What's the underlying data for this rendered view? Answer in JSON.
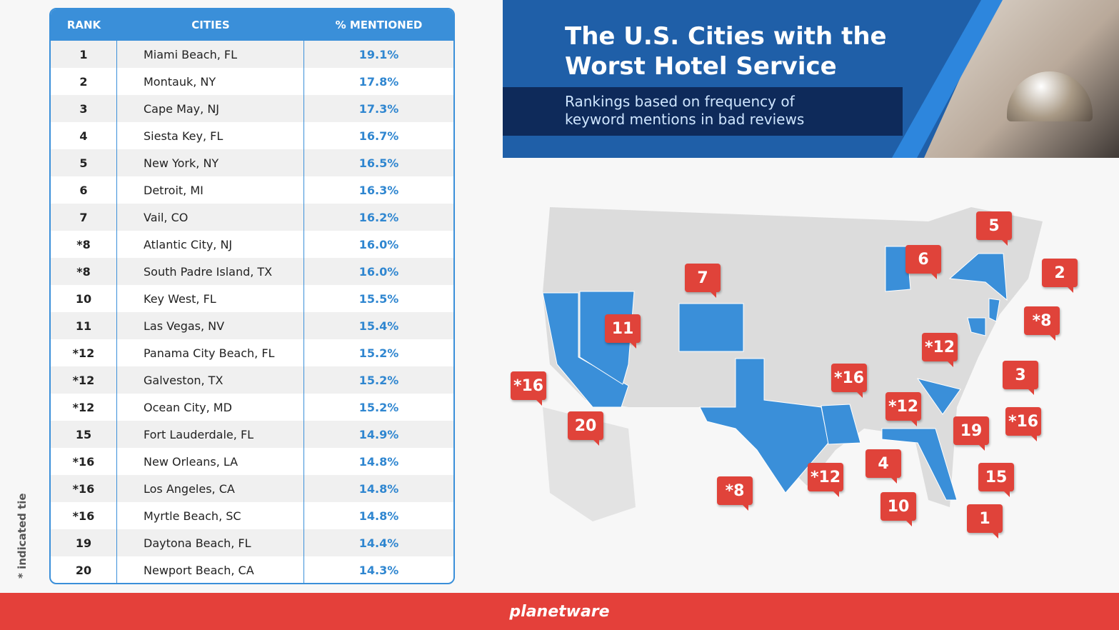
{
  "header": {
    "title_line1": "The U.S. Cities with the",
    "title_line2": "Worst Hotel Service",
    "subtitle_line1": "Rankings based on frequency of",
    "subtitle_line2": "keyword mentions in bad reviews"
  },
  "footnote": "* indicated tie",
  "footer": {
    "logo": "planetware"
  },
  "chart_data": {
    "type": "table",
    "columns": [
      "RANK",
      "CITIES",
      "% MENTIONED"
    ],
    "rows": [
      [
        "1",
        "Miami Beach, FL",
        "19.1%"
      ],
      [
        "2",
        "Montauk, NY",
        "17.8%"
      ],
      [
        "3",
        "Cape May, NJ",
        "17.3%"
      ],
      [
        "4",
        "Siesta Key, FL",
        "16.7%"
      ],
      [
        "5",
        "New York, NY",
        "16.5%"
      ],
      [
        "6",
        "Detroit, MI",
        "16.3%"
      ],
      [
        "7",
        "Vail, CO",
        "16.2%"
      ],
      [
        "*8",
        "Atlantic City, NJ",
        "16.0%"
      ],
      [
        "*8",
        "South Padre Island, TX",
        "16.0%"
      ],
      [
        "10",
        "Key West, FL",
        "15.5%"
      ],
      [
        "11",
        "Las Vegas, NV",
        "15.4%"
      ],
      [
        "*12",
        "Panama City Beach, FL",
        "15.2%"
      ],
      [
        "*12",
        "Galveston, TX",
        "15.2%"
      ],
      [
        "*12",
        "Ocean City, MD",
        "15.2%"
      ],
      [
        "15",
        "Fort Lauderdale, FL",
        "14.9%"
      ],
      [
        "*16",
        "New Orleans, LA",
        "14.8%"
      ],
      [
        "*16",
        "Los Angeles, CA",
        "14.8%"
      ],
      [
        "*16",
        "Myrtle Beach, SC",
        "14.8%"
      ],
      [
        "19",
        "Daytona Beach, FL",
        "14.4%"
      ],
      [
        "20",
        "Newport Beach, CA",
        "14.3%"
      ]
    ]
  },
  "map_pins": [
    "5",
    "6",
    "2",
    "7",
    "*8",
    "11",
    "*12",
    "3",
    "*16",
    "*16",
    "*12",
    "20",
    "19",
    "*16",
    "4",
    "15",
    "*12",
    "*8",
    "10",
    "1"
  ],
  "colors": {
    "accent": "#3a8fd9",
    "pin": "#e0433a",
    "footer": "#e4403a"
  }
}
